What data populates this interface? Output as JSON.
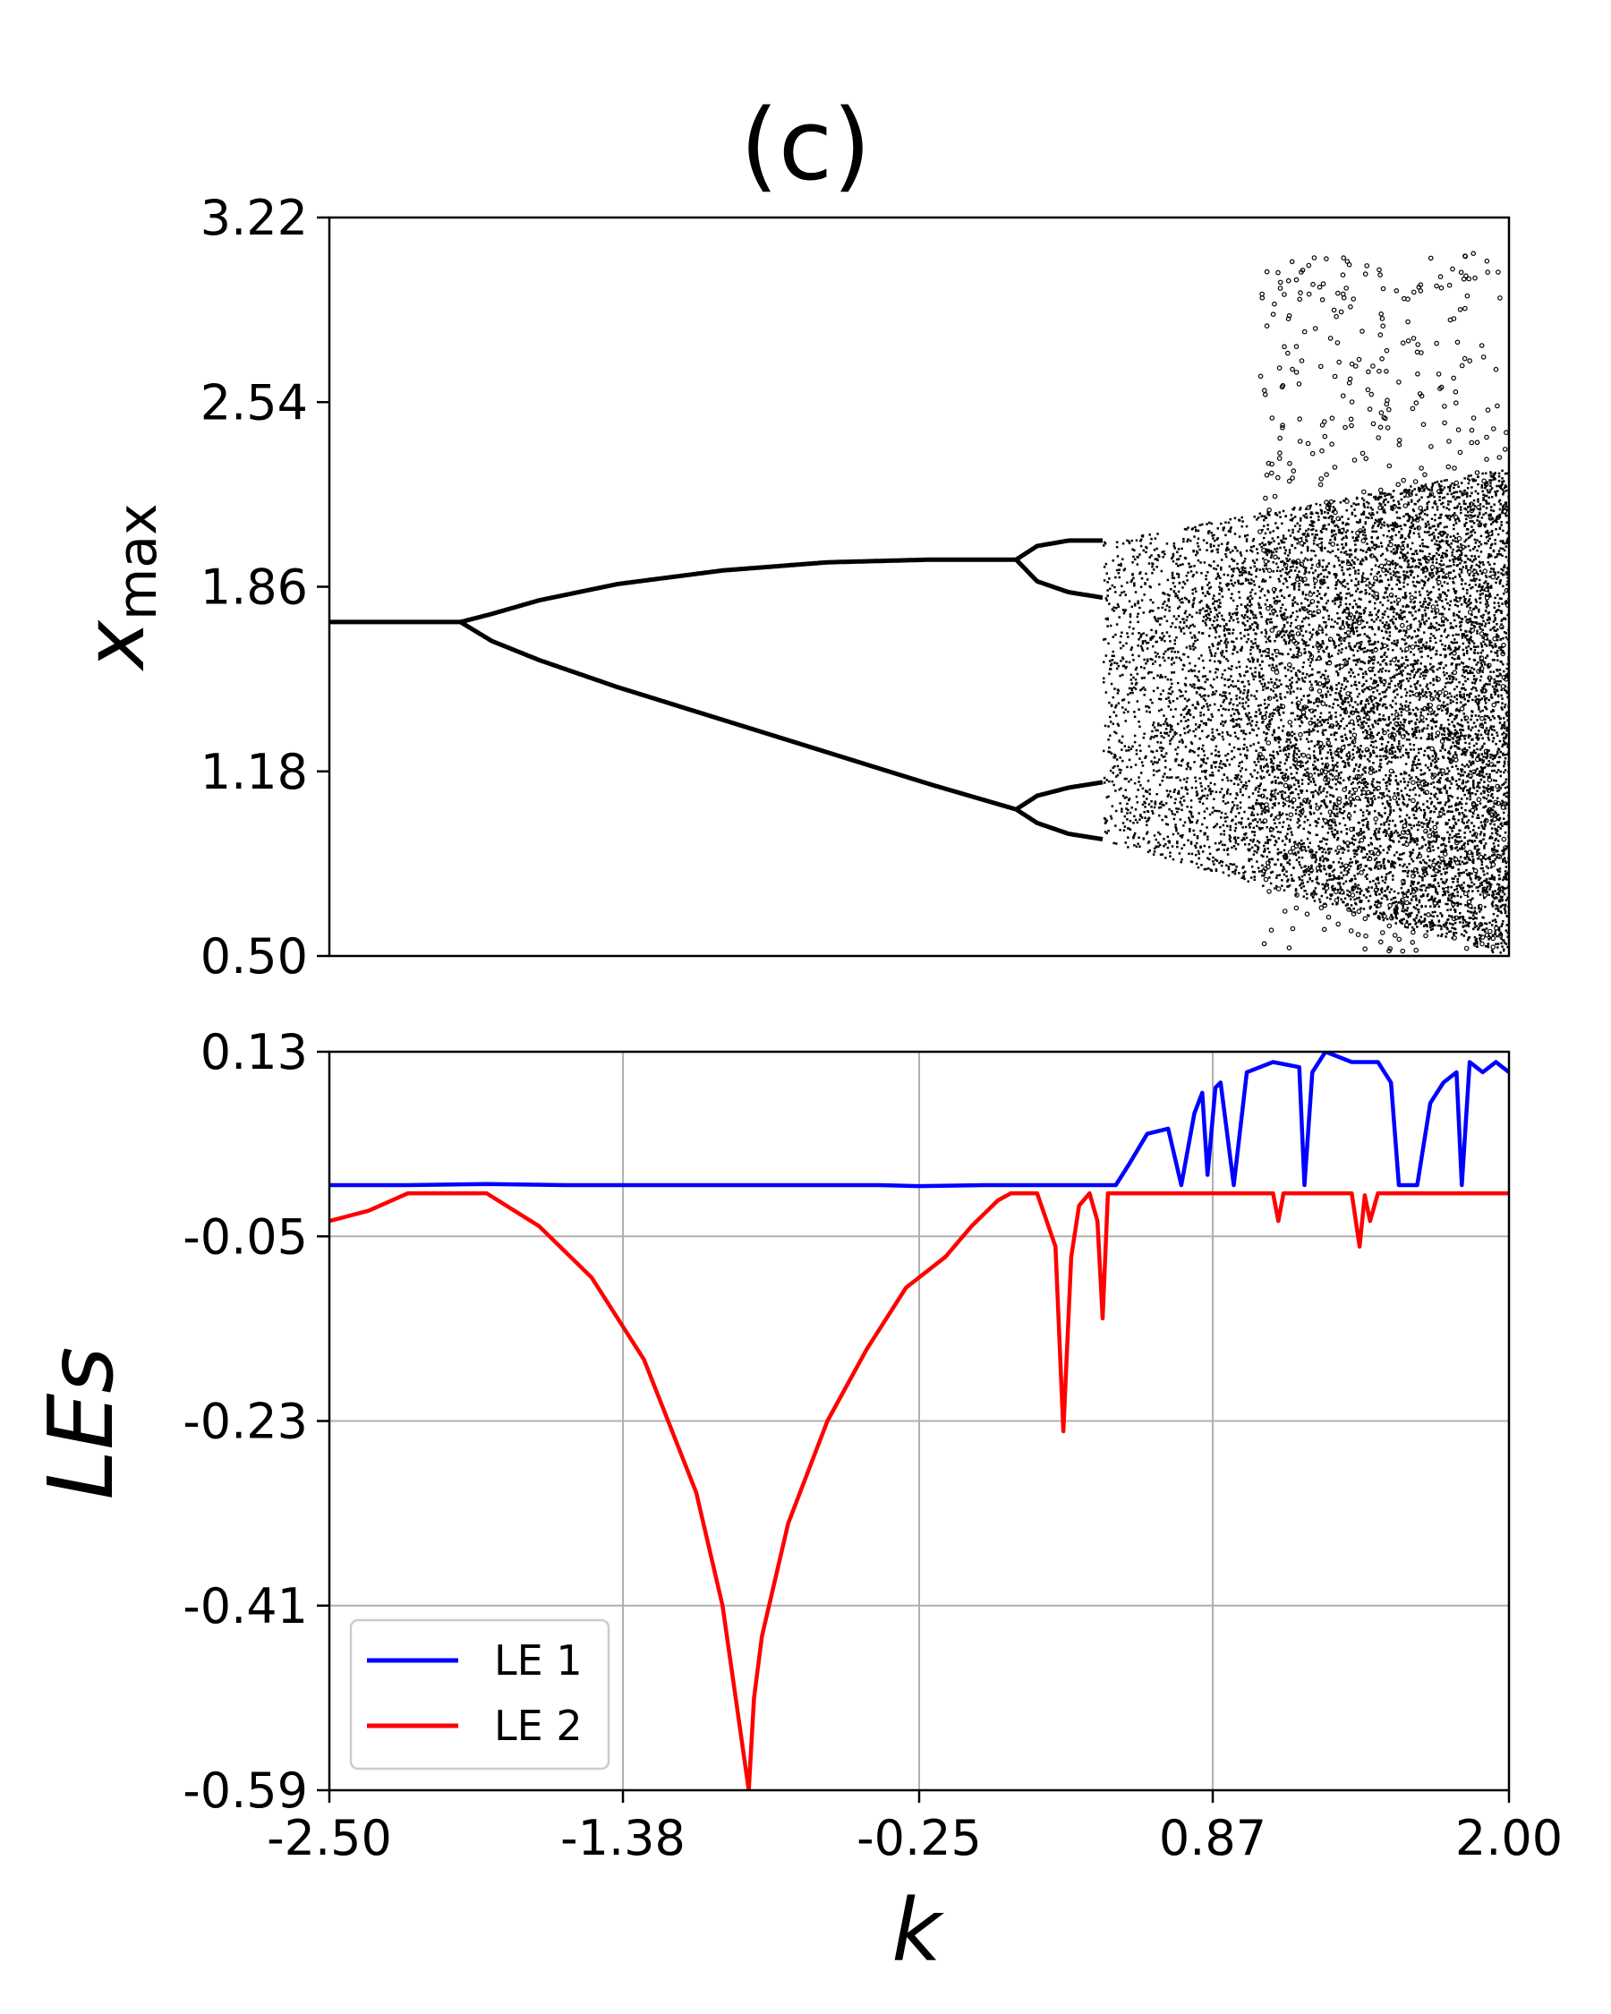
{
  "title": "(c)",
  "chart_data": [
    {
      "type": "scatter",
      "name_hint": "bifurcation",
      "xlabel": "",
      "ylabel_main": "x",
      "ylabel_sub": "max",
      "xlim": [
        -2.5,
        2.0
      ],
      "ylim": [
        0.5,
        3.22
      ],
      "yticks": [
        "3.22",
        "2.54",
        "1.86",
        "1.18",
        "0.50"
      ],
      "ytick_values": [
        3.22,
        2.54,
        1.86,
        1.18,
        0.5
      ],
      "grid": false,
      "colors": {
        "points": "#000000"
      },
      "branches": [
        {
          "x": [
            -2.5,
            -2.0
          ],
          "y": [
            1.73,
            1.73
          ]
        },
        {
          "x": [
            -2.0,
            -1.88,
            -1.7,
            -1.4,
            -1.0,
            -0.6,
            -0.2,
            0.12
          ],
          "y": [
            1.73,
            1.76,
            1.81,
            1.87,
            1.92,
            1.95,
            1.96,
            1.96
          ]
        },
        {
          "x": [
            -2.0,
            -1.88,
            -1.7,
            -1.4,
            -1.0,
            -0.6,
            -0.2,
            0.12
          ],
          "y": [
            1.73,
            1.66,
            1.59,
            1.49,
            1.37,
            1.25,
            1.13,
            1.04
          ]
        },
        {
          "x": [
            0.12,
            0.2,
            0.32,
            0.45
          ],
          "y": [
            1.96,
            2.01,
            2.03,
            2.03
          ]
        },
        {
          "x": [
            0.12,
            0.2,
            0.32,
            0.45
          ],
          "y": [
            1.96,
            1.88,
            1.84,
            1.82
          ]
        },
        {
          "x": [
            0.12,
            0.2,
            0.32,
            0.45
          ],
          "y": [
            1.04,
            1.09,
            1.12,
            1.14
          ]
        },
        {
          "x": [
            0.12,
            0.2,
            0.32,
            0.45
          ],
          "y": [
            1.04,
            0.99,
            0.95,
            0.93
          ]
        }
      ],
      "chaos_bands": [
        {
          "x_start": 0.45,
          "x_end": 2.0,
          "y_top_start": 2.03,
          "y_top_end": 2.3,
          "y_bottom_start": 0.93,
          "y_bottom_end": 0.5
        }
      ],
      "sparse_region": {
        "x_start": 1.05,
        "x_end": 2.0,
        "y_min": 0.5,
        "y_max": 3.1
      }
    },
    {
      "type": "line",
      "name_hint": "lyapunov",
      "xlabel": "k",
      "ylabel": "LEs",
      "xlim": [
        -2.5,
        2.0
      ],
      "ylim": [
        -0.59,
        0.13
      ],
      "xticks": [
        "-2.50",
        "-1.38",
        "-0.25",
        "0.87",
        "2.00"
      ],
      "xtick_values": [
        -2.5,
        -1.38,
        -0.25,
        0.87,
        2.0
      ],
      "yticks": [
        "0.13",
        "-0.05",
        "-0.23",
        "-0.41",
        "-0.59"
      ],
      "ytick_values": [
        0.13,
        -0.05,
        -0.23,
        -0.41,
        -0.59
      ],
      "grid": true,
      "legend_position": "lower-left",
      "series": [
        {
          "name": "LE 1",
          "color": "#0000ff",
          "x": [
            -2.5,
            -2.2,
            -1.9,
            -1.6,
            -1.2,
            -0.8,
            -0.4,
            -0.25,
            0.0,
            0.3,
            0.5,
            0.55,
            0.62,
            0.7,
            0.75,
            0.8,
            0.83,
            0.85,
            0.88,
            0.9,
            0.95,
            1.0,
            1.1,
            1.2,
            1.22,
            1.25,
            1.3,
            1.4,
            1.5,
            1.55,
            1.58,
            1.6,
            1.65,
            1.7,
            1.75,
            1.8,
            1.82,
            1.85,
            1.9,
            1.95,
            2.0
          ],
          "y": [
            0.0,
            0.0,
            0.001,
            0.0,
            0.0,
            0.0,
            0.0,
            -0.001,
            0.0,
            0.0,
            0.0,
            0.02,
            0.05,
            0.055,
            0.0,
            0.07,
            0.09,
            0.01,
            0.095,
            0.1,
            0.0,
            0.11,
            0.12,
            0.115,
            0.0,
            0.11,
            0.13,
            0.12,
            0.12,
            0.1,
            0.0,
            0.0,
            0.0,
            0.08,
            0.1,
            0.11,
            0.0,
            0.12,
            0.11,
            0.12,
            0.11
          ]
        },
        {
          "name": "LE 2",
          "color": "#ff0000",
          "x": [
            -2.5,
            -2.35,
            -2.2,
            -1.9,
            -1.7,
            -1.5,
            -1.3,
            -1.1,
            -1.0,
            -0.95,
            -0.9,
            -0.88,
            -0.85,
            -0.75,
            -0.6,
            -0.45,
            -0.3,
            -0.15,
            -0.05,
            0.05,
            0.1,
            0.2,
            0.27,
            0.3,
            0.33,
            0.36,
            0.4,
            0.43,
            0.45,
            0.47,
            0.5,
            0.8,
            1.1,
            1.12,
            1.14,
            1.3,
            1.4,
            1.43,
            1.45,
            1.47,
            1.5,
            2.0
          ],
          "y": [
            -0.035,
            -0.025,
            -0.008,
            -0.008,
            -0.04,
            -0.09,
            -0.17,
            -0.3,
            -0.41,
            -0.5,
            -0.59,
            -0.5,
            -0.44,
            -0.33,
            -0.23,
            -0.16,
            -0.1,
            -0.07,
            -0.04,
            -0.015,
            -0.008,
            -0.008,
            -0.06,
            -0.24,
            -0.07,
            -0.02,
            -0.008,
            -0.035,
            -0.13,
            -0.008,
            -0.008,
            -0.008,
            -0.008,
            -0.035,
            -0.008,
            -0.008,
            -0.008,
            -0.06,
            -0.01,
            -0.035,
            -0.008,
            -0.008
          ]
        }
      ]
    }
  ]
}
